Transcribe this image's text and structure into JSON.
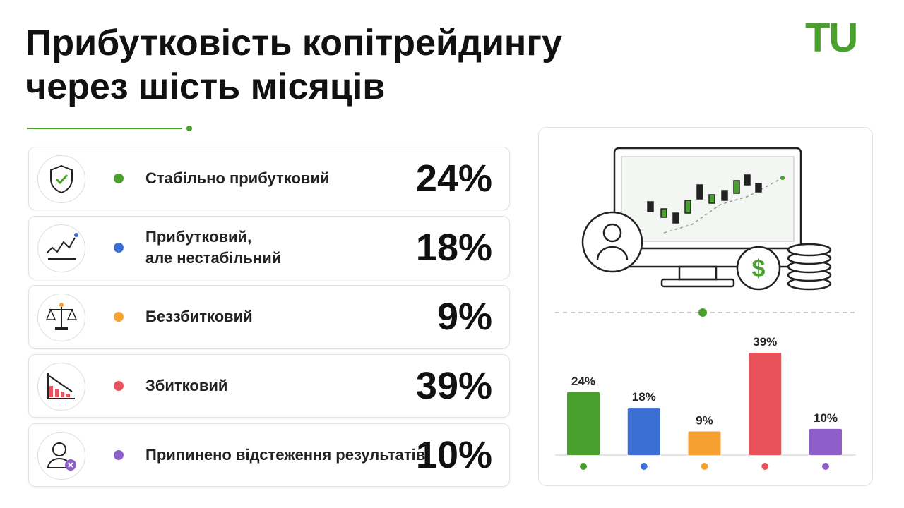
{
  "logo": "TU",
  "chart_data": {
    "type": "bar",
    "title": "Прибутковість копітрейдингу\nчерез шість місяців",
    "categories": [
      "Стабільно прибутковий",
      "Прибутковий,\nале нестабільний",
      "Беззбитковий",
      "Збитковий",
      "Припинено відстеження результатів"
    ],
    "values": [
      24,
      18,
      9,
      39,
      10
    ],
    "value_labels": [
      "24%",
      "18%",
      "9%",
      "39%",
      "10%"
    ],
    "colors": [
      "#4aa02c",
      "#3b6fd4",
      "#f5a030",
      "#e8525a",
      "#8e5fc8"
    ]
  }
}
